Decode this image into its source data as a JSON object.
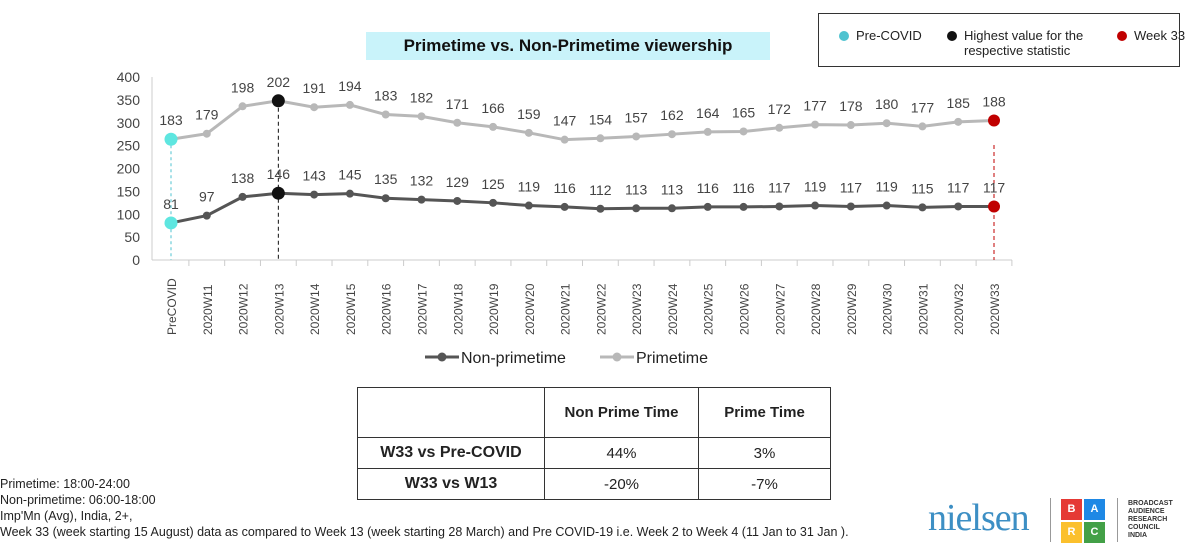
{
  "chart_data": {
    "type": "line",
    "title": "Primetime vs. Non-Primetime viewership",
    "stacked": true,
    "categories": [
      "PreCOVID",
      "2020W11",
      "2020W12",
      "2020W13",
      "2020W14",
      "2020W15",
      "2020W16",
      "2020W17",
      "2020W18",
      "2020W19",
      "2020W20",
      "2020W21",
      "2020W22",
      "2020W23",
      "2020W24",
      "2020W25",
      "2020W26",
      "2020W27",
      "2020W28",
      "2020W29",
      "2020W30",
      "2020W31",
      "2020W32",
      "2020W33"
    ],
    "series": [
      {
        "name": "Non-primetime",
        "color": "#555555",
        "values": [
          81,
          97,
          138,
          146,
          143,
          145,
          135,
          132,
          129,
          125,
          119,
          116,
          112,
          113,
          113,
          116,
          116,
          117,
          119,
          117,
          119,
          115,
          117,
          117
        ]
      },
      {
        "name": "Primetime",
        "color": "#b8b8b8",
        "values": [
          183,
          179,
          198,
          202,
          191,
          194,
          183,
          182,
          171,
          166,
          159,
          147,
          154,
          157,
          162,
          164,
          165,
          172,
          177,
          178,
          180,
          177,
          185,
          188
        ]
      }
    ],
    "ylim": [
      0,
      400
    ],
    "yticks": [
      0,
      50,
      100,
      150,
      200,
      250,
      300,
      350,
      400
    ],
    "grid": false,
    "legend_position": "bottom"
  },
  "key": {
    "items": [
      {
        "label": "Pre-COVID",
        "color": "#4fc3d0"
      },
      {
        "label": "Highest value for the respective statistic",
        "color": "#111111"
      },
      {
        "label": "Week 33",
        "color": "#c00000"
      }
    ]
  },
  "table": {
    "headers": [
      "",
      "Non Prime Time",
      "Prime Time"
    ],
    "rows": [
      [
        "W33 vs Pre-COVID",
        "44%",
        "3%"
      ],
      [
        "W33 vs W13",
        "-20%",
        "-7%"
      ]
    ]
  },
  "notes": [
    "Primetime: 18:00-24:00",
    "Non-primetime: 06:00-18:00",
    "Imp'Mn (Avg), India, 2+,",
    "Week 33 (week starting 15 August) data as compared to Week 13 (week starting 28 March) and  Pre COVID-19 i.e. Week 2 to Week 4 (11 Jan to 31 Jan )."
  ],
  "logos": {
    "nielsen": "nielsen",
    "barc_letters": [
      "B",
      "A",
      "R",
      "C"
    ],
    "barc_text": "BROADCAST AUDIENCE RESEARCH COUNCIL INDIA"
  }
}
